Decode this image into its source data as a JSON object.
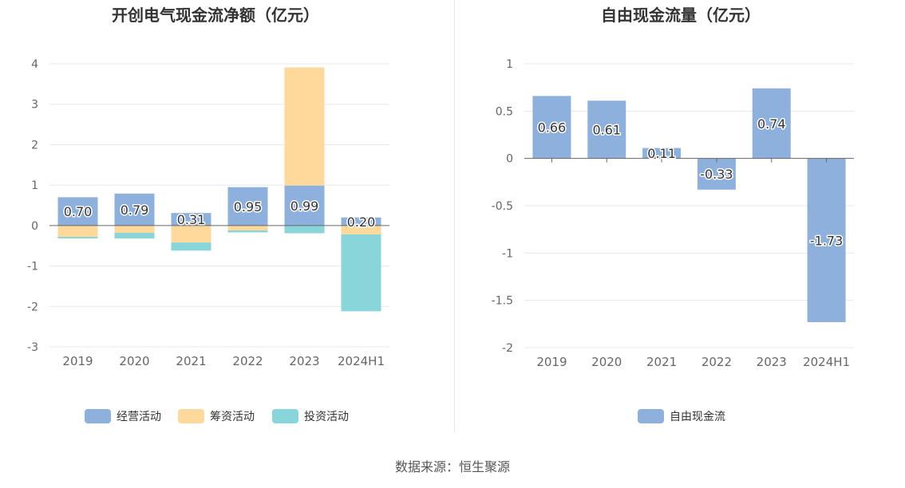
{
  "source_text": "数据来源：恒生聚源",
  "chart_data": [
    {
      "type": "bar",
      "stacked": true,
      "title": "开创电气现金流净额（亿元）",
      "categories": [
        "2019",
        "2020",
        "2021",
        "2022",
        "2023",
        "2024H1"
      ],
      "ylim": [
        -3,
        4
      ],
      "yticks": [
        4,
        3,
        2,
        1,
        0,
        -1,
        -2,
        -3
      ],
      "grid": true,
      "legend_position": "bottom",
      "series": [
        {
          "name": "经营活动",
          "color": "#8eb0dd",
          "values": [
            0.7,
            0.79,
            0.31,
            0.95,
            0.99,
            0.2
          ],
          "show_labels": true
        },
        {
          "name": "筹资活动",
          "color": "#ffd99c",
          "values": [
            -0.28,
            -0.18,
            -0.42,
            -0.12,
            2.92,
            -0.22
          ],
          "show_labels": false
        },
        {
          "name": "投资活动",
          "color": "#88d5da",
          "values": [
            -0.04,
            -0.14,
            -0.2,
            -0.05,
            -0.19,
            -1.9
          ],
          "show_labels": false
        }
      ],
      "data_labels": [
        "0.70",
        "0.79",
        "0.31",
        "0.95",
        "0.99",
        "0.20"
      ]
    },
    {
      "type": "bar",
      "title": "自由现金流量（亿元）",
      "categories": [
        "2019",
        "2020",
        "2021",
        "2022",
        "2023",
        "2024H1"
      ],
      "ylim": [
        -2,
        1
      ],
      "yticks": [
        1,
        0.5,
        0,
        -0.5,
        -1,
        -1.5,
        -2
      ],
      "ytick_labels": [
        "1",
        "0.5",
        "0",
        "-0.5",
        "-1",
        "-1.5",
        "-2"
      ],
      "grid": true,
      "legend_position": "bottom",
      "series": [
        {
          "name": "自由现金流",
          "color": "#8eb0dd",
          "values": [
            0.66,
            0.61,
            0.11,
            -0.33,
            0.74,
            -1.73
          ],
          "show_labels": true
        }
      ],
      "data_labels": [
        "0.66",
        "0.61",
        "0.11",
        "-0.33",
        "0.74",
        "-1.73"
      ]
    }
  ]
}
